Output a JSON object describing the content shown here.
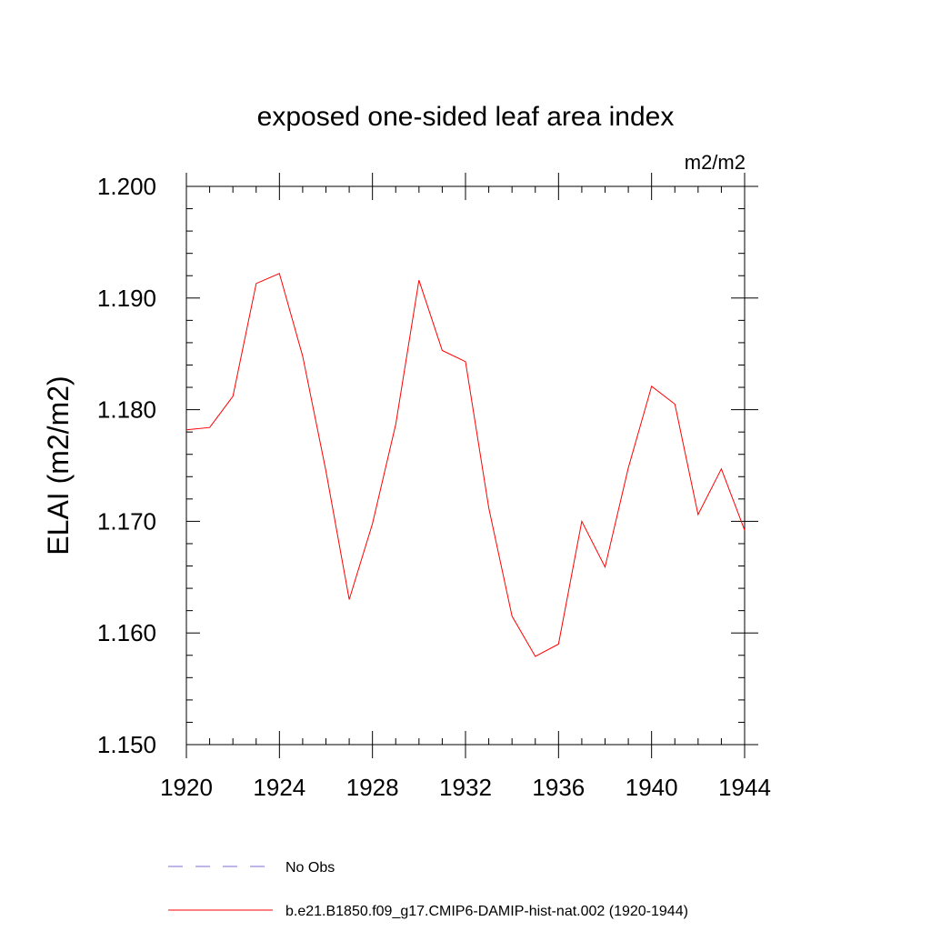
{
  "chart_data": {
    "type": "line",
    "title": "exposed one-sided leaf area index",
    "units": "m2/m2",
    "ylabel": "ELAI  (m2/m2)",
    "xlabel": "",
    "xlim": [
      1920,
      1944
    ],
    "ylim": [
      1.15,
      1.2
    ],
    "x_ticks": [
      1920,
      1924,
      1928,
      1932,
      1936,
      1940,
      1944
    ],
    "x_tick_labels": [
      "1920",
      "1924",
      "1928",
      "1932",
      "1936",
      "1940",
      "1944"
    ],
    "y_ticks": [
      1.15,
      1.16,
      1.17,
      1.18,
      1.19,
      1.2
    ],
    "y_tick_labels": [
      "1.150",
      "1.160",
      "1.170",
      "1.180",
      "1.190",
      "1.200"
    ],
    "grid": false,
    "legend_position": "bottom",
    "series": [
      {
        "name": "b.e21.B1850.f09_g17.CMIP6-DAMIP-hist-nat.002 (1920-1944)",
        "color": "#ff0000",
        "style": "solid",
        "x": [
          1920,
          1921,
          1922,
          1923,
          1924,
          1925,
          1926,
          1927,
          1928,
          1929,
          1930,
          1931,
          1932,
          1933,
          1934,
          1935,
          1936,
          1937,
          1938,
          1939,
          1940,
          1941,
          1942,
          1943,
          1944
        ],
        "values": [
          1.1782,
          1.1784,
          1.1812,
          1.1913,
          1.1922,
          1.1848,
          1.1745,
          1.163,
          1.1698,
          1.1787,
          1.1916,
          1.1853,
          1.1843,
          1.1712,
          1.1615,
          1.1579,
          1.159,
          1.17,
          1.1659,
          1.1748,
          1.1821,
          1.1805,
          1.1706,
          1.1747,
          1.1692
        ]
      }
    ],
    "legend": [
      {
        "label": "No Obs",
        "color": "#7b6cd6",
        "style": "dashed"
      },
      {
        "label": "b.e21.B1850.f09_g17.CMIP6-DAMIP-hist-nat.002 (1920-1944)",
        "color": "#ff0000",
        "style": "solid"
      }
    ]
  }
}
